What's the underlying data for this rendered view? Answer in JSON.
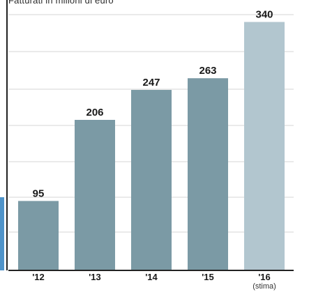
{
  "chart": {
    "title": "Fatturati in milioni di euro"
  },
  "chart_data": {
    "type": "bar",
    "title": "Fatturati in milioni di euro",
    "categories": [
      "'12",
      "'13",
      "'14",
      "'15",
      "'16"
    ],
    "category_notes": [
      "",
      "",
      "",
      "",
      "(stima)"
    ],
    "values": [
      95,
      206,
      247,
      263,
      340
    ],
    "ylim": [
      0,
      380
    ],
    "grid": true,
    "xlabel": "",
    "ylabel": "",
    "colors": {
      "actual": "#7b9aa5",
      "estimate": "#b2c6cf",
      "grid": "#d6d6d6",
      "axis": "#222222",
      "label": "#1a1a1a"
    }
  }
}
